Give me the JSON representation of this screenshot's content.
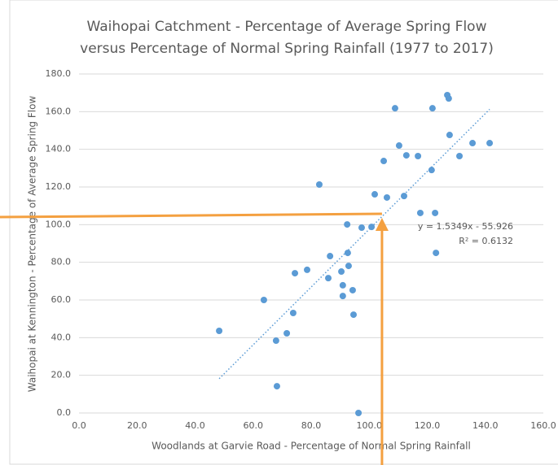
{
  "chart_data": {
    "type": "scatter",
    "title": [
      "Waihopai Catchment - Percentage of Average Spring Flow",
      "versus Percentage of Normal Spring Rainfall (1977 to 2017)"
    ],
    "x_label": "Woodlands at Garvie Road - Percentage of Normal Spring Rainfall",
    "y_label": "Waihopai at Kennington - Percentage of Average Spring Flow",
    "color": "#5b9bd5",
    "x": [
      48.3,
      63.7,
      67.9,
      68.2,
      71.6,
      73.8,
      74.4,
      78.6,
      82.8,
      85.9,
      86.5,
      90.4,
      90.9,
      90.9,
      92.4,
      92.6,
      92.9,
      94.3,
      94.6,
      96.3,
      97.4,
      100.8,
      101.9,
      105.0,
      106.1,
      108.9,
      110.3,
      112.0,
      112.8,
      116.8,
      117.6,
      121.5,
      121.8,
      122.7,
      123.0,
      126.9,
      127.4,
      127.7,
      131.1,
      135.6,
      141.5
    ],
    "values": [
      43.6,
      60.0,
      38.4,
      14.2,
      42.3,
      53.1,
      74.2,
      76.0,
      121.3,
      71.6,
      83.3,
      75.1,
      67.8,
      62.1,
      100.1,
      85.0,
      78.1,
      65.2,
      52.2,
      0.0,
      98.4,
      98.8,
      116.1,
      133.8,
      114.4,
      161.8,
      142.0,
      115.2,
      136.8,
      136.4,
      106.2,
      129.0,
      161.8,
      106.2,
      85.0,
      168.8,
      167.0,
      147.6,
      136.4,
      143.3,
      143.3
    ],
    "xlim": [
      0,
      160
    ],
    "xticks": [
      {
        "value": 0,
        "label": "0.0"
      },
      {
        "value": 20,
        "label": "20.0"
      },
      {
        "value": 40,
        "label": "40.0"
      },
      {
        "value": 60,
        "label": "60.0"
      },
      {
        "value": 80,
        "label": "80.0"
      },
      {
        "value": 100,
        "label": "100.0"
      },
      {
        "value": 120,
        "label": "120.0"
      },
      {
        "value": 140,
        "label": "140.0"
      },
      {
        "value": 160,
        "label": "160.0"
      }
    ],
    "ylim": [
      0,
      180
    ],
    "yticks": [
      {
        "value": 0,
        "label": "0.0"
      },
      {
        "value": 20,
        "label": "20.0"
      },
      {
        "value": 40,
        "label": "40.0"
      },
      {
        "value": 60,
        "label": "60.0"
      },
      {
        "value": 80,
        "label": "80.0"
      },
      {
        "value": 100,
        "label": "100.0"
      },
      {
        "value": 120,
        "label": "120.0"
      },
      {
        "value": 140,
        "label": "140.0"
      },
      {
        "value": 160,
        "label": "160.0"
      },
      {
        "value": 180,
        "label": "180.0"
      }
    ],
    "grid": true,
    "trendline": {
      "slope": 1.5349,
      "intercept": -55.926,
      "equation": "y = 1.5349x - 55.926",
      "r2": "R² = 0.6132"
    },
    "annotation": {
      "x": 104.4,
      "y": 105.3,
      "color": "#f4a040"
    }
  }
}
